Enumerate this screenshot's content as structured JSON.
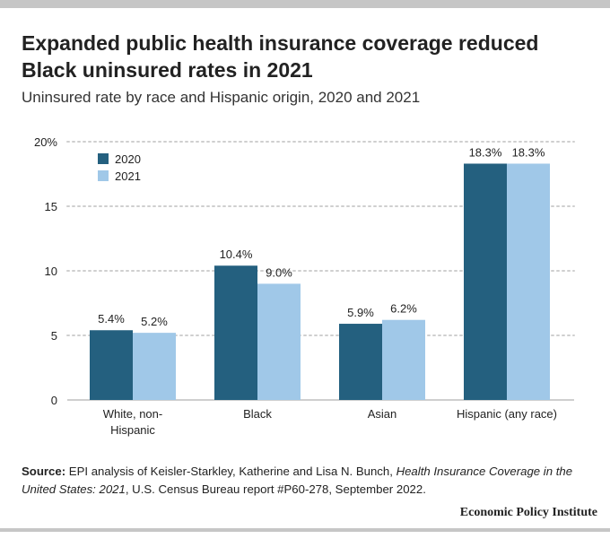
{
  "title_line1": "Expanded public health insurance coverage reduced",
  "title_line2": "Black uninsured rates in 2021",
  "subtitle": "Uninsured rate by race and Hispanic origin, 2020 and 2021",
  "source": {
    "label": "Source:",
    "text_1": "EPI analysis of Keisler-Starkley, Katherine and Lisa N. Bunch, ",
    "italic_1": "Health Insurance Coverage in the United States: 2021",
    "text_2": ", U.S. Census Bureau report #P60-278, September 2022."
  },
  "brand": "Economic Policy Institute",
  "colors": {
    "2020": "#24607f",
    "2021": "#a0c8e8"
  },
  "chart_data": {
    "type": "bar",
    "title": "Expanded public health insurance coverage reduced Black uninsured rates in 2021",
    "subtitle": "Uninsured rate by race and Hispanic origin, 2020 and 2021",
    "categories": [
      [
        "White, non-",
        "Hispanic"
      ],
      [
        "Black"
      ],
      [
        "Asian"
      ],
      [
        "Hispanic (any race)"
      ]
    ],
    "series": [
      {
        "name": "2020",
        "values": [
          5.4,
          10.4,
          5.9,
          18.3
        ],
        "labels": [
          "5.4%",
          "10.4%",
          "5.9%",
          "18.3%"
        ]
      },
      {
        "name": "2021",
        "values": [
          5.2,
          9.0,
          6.2,
          18.3
        ],
        "labels": [
          "5.2%",
          "9.0%",
          "6.2%",
          "18.3%"
        ]
      }
    ],
    "y_ticks": [
      0,
      5,
      10,
      15,
      20
    ],
    "y_tick_labels": [
      "0",
      "5",
      "10",
      "15",
      "20%"
    ],
    "ylim": [
      0,
      20
    ],
    "grid": true,
    "legend_position": "top-left"
  }
}
